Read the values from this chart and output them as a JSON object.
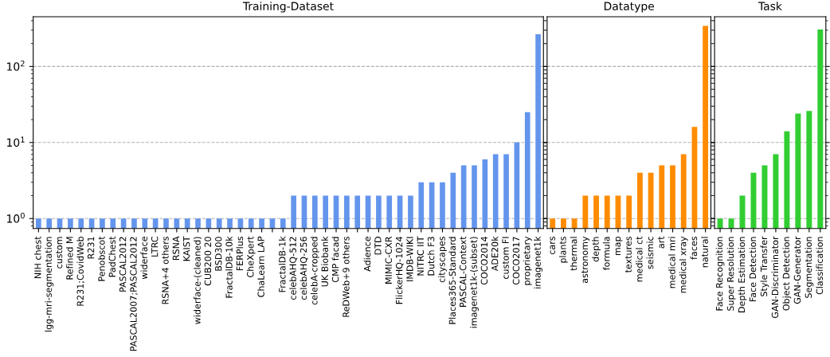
{
  "chart_data": [
    {
      "type": "bar",
      "title": "Training-Dataset",
      "log": true,
      "grid": "y",
      "color": "#6495ed",
      "ylim": [
        0.74,
        450
      ],
      "yticks": [
        {
          "value": 1,
          "label": "10$^{0}$"
        },
        {
          "value": 10,
          "label": "10$^{1}$"
        },
        {
          "value": 100,
          "label": "10$^{2}$"
        }
      ],
      "categories": [
        "NIH chest",
        "lgg-mri-segmentation",
        "custom",
        "Refined M",
        "R231;CovidWeb",
        "R231",
        "Penobscot",
        "PadChest",
        "PASCAL2012",
        "PASCAL2007;PASCAL2012",
        "widerface",
        "LTRC",
        "RSNA+4 others",
        "RSNA",
        "KAIST",
        "widerface-(cleaned)",
        "CUB200 20",
        "BSD300",
        "FractalDB-10k",
        "FERPlus",
        "CheXpert",
        "ChaLearn LAP",
        null,
        "FractalDB-1k",
        "celebAHQ-512",
        "celebAHQ-256",
        "celebA-cropped",
        "UK Biobank",
        "CMP facad",
        "ReDWeb+9 others",
        null,
        "Adience",
        "DTD",
        "MIMIC-CXR",
        "FlickerHQ-1024",
        "IMDB-WIKI",
        "NITRC IIT",
        "Dutch F3",
        "cityscapes",
        "Places365-Standard",
        "PASCAL-Context",
        "imagenet1k-(subset)",
        "COCO2014",
        "ADE20k",
        "custom FI",
        "COCO2017",
        "proprietary",
        "imagenet1k"
      ],
      "values": [
        1,
        1,
        1,
        1,
        1,
        1,
        1,
        1,
        1,
        1,
        1,
        1,
        1,
        1,
        1,
        1,
        1,
        1,
        1,
        1,
        1,
        1,
        1,
        1,
        2,
        2,
        2,
        2,
        2,
        2,
        2,
        2,
        2,
        2,
        2,
        2,
        3,
        3,
        3,
        4,
        5,
        5,
        6,
        7,
        7,
        10,
        25,
        265
      ]
    },
    {
      "type": "bar",
      "title": "Datatype",
      "log": true,
      "grid": "y",
      "color": "#ff8c00",
      "ylim": [
        0.74,
        450
      ],
      "yticks": [
        {
          "value": 1,
          "label": null
        },
        {
          "value": 10,
          "label": null
        },
        {
          "value": 100,
          "label": null
        }
      ],
      "tick_labels": "x",
      "categories": [
        "cars",
        "plants",
        "thermal",
        "astronomy",
        "depth",
        "formula",
        "map",
        "textures",
        "medical ct",
        "seismic",
        "art",
        "medical mri",
        "medical xray",
        "faces",
        "natural"
      ],
      "values": [
        1,
        1,
        1,
        2,
        2,
        2,
        2,
        2,
        4,
        4,
        5,
        5,
        7,
        16,
        341
      ]
    },
    {
      "type": "bar",
      "title": "Task",
      "log": true,
      "grid": "y",
      "color": "#32cd32",
      "ylim": [
        0.74,
        450
      ],
      "yticks": [
        {
          "value": 1,
          "label": null
        },
        {
          "value": 10,
          "label": null
        },
        {
          "value": 100,
          "label": null
        }
      ],
      "tick_labels": "x",
      "categories": [
        "Face Recognition",
        "Super Resolution",
        "Depth Estimation",
        "Face Detection",
        "Style Transfer",
        "GAN-Discriminator",
        "Object Detection",
        "GAN-Generator",
        "Segmentation",
        "Classification"
      ],
      "values": [
        1,
        1,
        2,
        4,
        5,
        7,
        14,
        24,
        26,
        306
      ]
    }
  ]
}
